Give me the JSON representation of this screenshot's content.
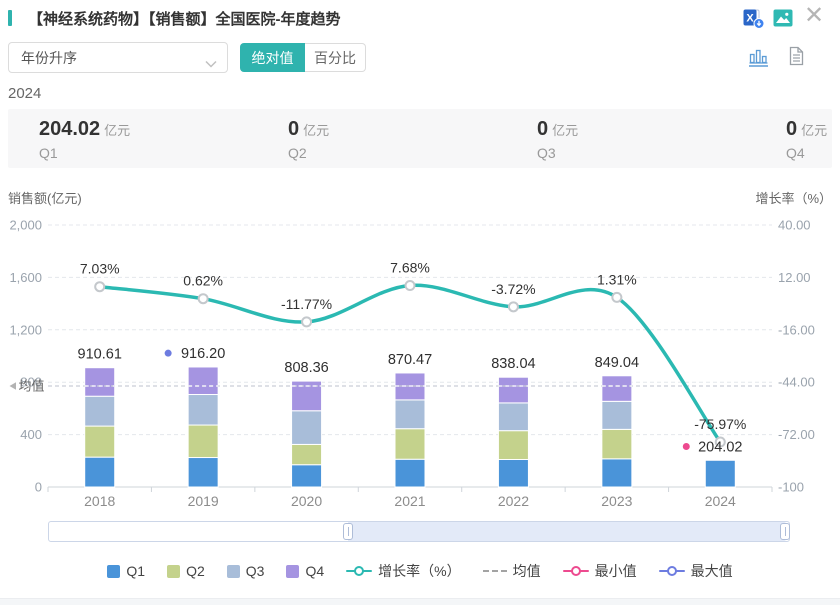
{
  "accent_color": "#2FB3AE",
  "header": {
    "title": "【神经系统药物】【销售额】全国医院-年度趋势"
  },
  "toolbar": {
    "sort_dropdown_value": "年份升序",
    "absolute_label": "绝对值",
    "percent_label": "百分比"
  },
  "summary": {
    "year": "2024",
    "items": [
      {
        "value": "204.02",
        "unit": "亿元",
        "label": "Q1"
      },
      {
        "value": "0",
        "unit": "亿元",
        "label": "Q2"
      },
      {
        "value": "0",
        "unit": "亿元",
        "label": "Q3"
      },
      {
        "value": "0",
        "unit": "亿元",
        "label": "Q4"
      }
    ]
  },
  "chart_data": {
    "type": "bar",
    "subtype": "stacked-bar-with-line",
    "categories": [
      "2018",
      "2019",
      "2020",
      "2021",
      "2022",
      "2023",
      "2024"
    ],
    "series": [
      {
        "name": "Q1",
        "color": "#4A94D9",
        "values": [
          228,
          225,
          170,
          212,
          210,
          215,
          204.02
        ]
      },
      {
        "name": "Q2",
        "color": "#C4D28C",
        "values": [
          237,
          248,
          155,
          233,
          220,
          225,
          0
        ]
      },
      {
        "name": "Q3",
        "color": "#A8BDD9",
        "values": [
          228,
          233,
          257,
          220,
          212,
          214,
          0
        ]
      },
      {
        "name": "Q4",
        "color": "#A594E1",
        "values": [
          217.61,
          210.2,
          226.36,
          205.47,
          196.04,
          195.04,
          0
        ]
      }
    ],
    "totals": [
      910.61,
      916.2,
      808.36,
      870.47,
      838.04,
      849.04,
      204.02
    ],
    "total_labels": [
      "910.61",
      "916.20",
      "808.36",
      "870.47",
      "838.04",
      "849.04",
      "204.02"
    ],
    "line": {
      "name": "增长率（%）",
      "color": "#2BB9B2",
      "values": [
        7.03,
        0.62,
        -11.77,
        7.68,
        -3.72,
        1.31,
        -75.97
      ],
      "labels": [
        "7.03%",
        "0.62%",
        "-11.77%",
        "7.68%",
        "-3.72%",
        "1.31%",
        "-75.97%"
      ]
    },
    "left_axis": {
      "title": "销售额(亿元)",
      "min": 0,
      "max": 2000,
      "tick_values": [
        0,
        400,
        800,
        1200,
        1600,
        2000
      ],
      "tick_labels": [
        "0",
        "400",
        "800",
        "1,200",
        "1,600",
        "2,000"
      ],
      "grid": "dashed"
    },
    "right_axis": {
      "title": "增长率（%）",
      "min": -100,
      "max": 40,
      "tick_values": [
        -100,
        -72,
        -44,
        -16,
        12,
        40
      ],
      "tick_labels": [
        "-100",
        "-72.00",
        "-44.00",
        "-16.00",
        "12.00",
        "40.00"
      ]
    },
    "mean_line": {
      "label": "均值",
      "value": 770.96
    },
    "max_point": {
      "category": "2019",
      "label": "916.20",
      "color": "#6D7CE0"
    },
    "min_point": {
      "category": "2024",
      "label": "204.02",
      "color": "#ED4A8F"
    },
    "legend": [
      {
        "label": "Q1",
        "type": "swatch",
        "color": "#4A94D9"
      },
      {
        "label": "Q2",
        "type": "swatch",
        "color": "#C4D28C"
      },
      {
        "label": "Q3",
        "type": "swatch",
        "color": "#A8BDD9"
      },
      {
        "label": "Q4",
        "type": "swatch",
        "color": "#A594E1"
      },
      {
        "label": "增长率（%）",
        "type": "line-marker",
        "color": "#2BB9B2"
      },
      {
        "label": "均值",
        "type": "dashed",
        "color": "#a3a3a3"
      },
      {
        "label": "最小值",
        "type": "ring-marker",
        "color": "#ED4A8F"
      },
      {
        "label": "最大值",
        "type": "ring-marker",
        "color": "#6D7CE0"
      }
    ],
    "slider": {
      "selected_start_pct": 40,
      "selected_end_pct": 99
    }
  }
}
